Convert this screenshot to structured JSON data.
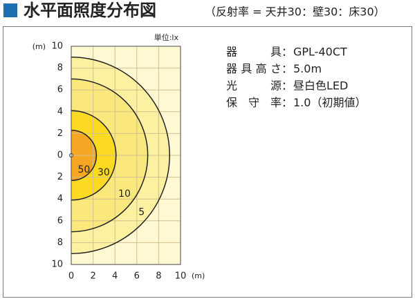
{
  "chart_data": {
    "type": "contour",
    "title": "水平面照度分布図",
    "subtitle": "（反射率 = 天井30：壁30：床30）",
    "unit": "単位:lx",
    "x_label": "(m)",
    "y_label": "(m)",
    "xlim": [
      0,
      10
    ],
    "xticks": [
      0,
      2,
      4,
      6,
      8,
      10
    ],
    "ylim": [
      -10,
      10
    ],
    "yticks": [
      {
        "value": 10,
        "label": "10"
      },
      {
        "value": 8,
        "label": "8"
      },
      {
        "value": 6,
        "label": "6"
      },
      {
        "value": 4,
        "label": "4"
      },
      {
        "value": 2,
        "label": "2"
      },
      0,
      {
        "value": -2,
        "label": "2"
      },
      {
        "value": -4,
        "label": "4"
      },
      {
        "value": -6,
        "label": "6"
      },
      {
        "value": -8,
        "label": "8"
      },
      {
        "value": -10,
        "label": "10"
      }
    ],
    "grid": true,
    "background": "#fef9d2",
    "levels": [
      5,
      10,
      30,
      50
    ],
    "radii": [
      9.0,
      7.0,
      4.1,
      2.3
    ],
    "colors": [
      "#fcf1a0",
      "#fbe87c",
      "#fdda22",
      "#f5a623"
    ],
    "separator": "：",
    "specs": [
      {
        "label": "器　　具",
        "value": "GPL-40CT"
      },
      {
        "label": "器具高さ",
        "value": "5.0m"
      },
      {
        "label": "光　　源",
        "value": "昼白色LED"
      },
      {
        "label": "保 守 率",
        "value": "1.0（初期値）"
      }
    ]
  }
}
